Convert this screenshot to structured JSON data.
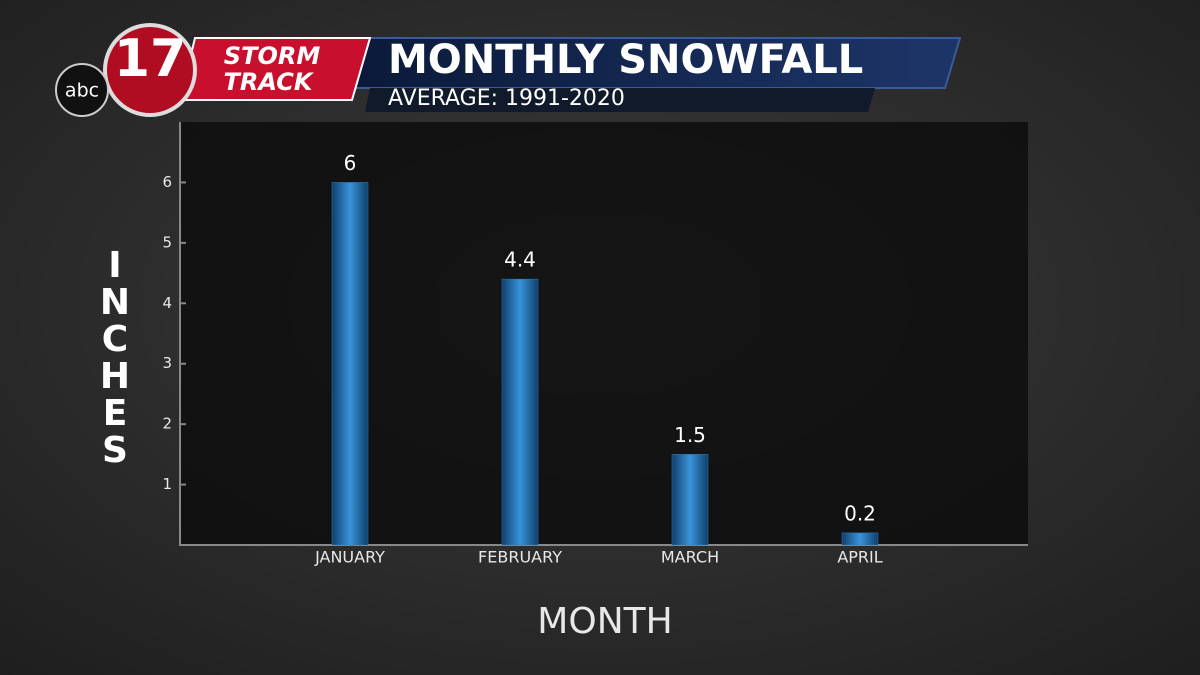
{
  "branding": {
    "network": "abc",
    "channel": "17",
    "show_line1": "STORM",
    "show_line2": "TRACK"
  },
  "chart_data": {
    "type": "bar",
    "title": "MONTHLY SNOWFALL",
    "subtitle": "AVERAGE: 1991-2020",
    "y_label": "INCHES",
    "x_label": "MONTH",
    "categories": [
      "JANUARY",
      "FEBRUARY",
      "MARCH",
      "APRIL"
    ],
    "values": [
      6,
      4.4,
      1.5,
      0.2
    ],
    "color": "#2a7fc4",
    "ylim": [
      0,
      7
    ],
    "yticks": [
      1,
      2,
      3,
      4,
      5,
      6
    ],
    "grid": false
  }
}
